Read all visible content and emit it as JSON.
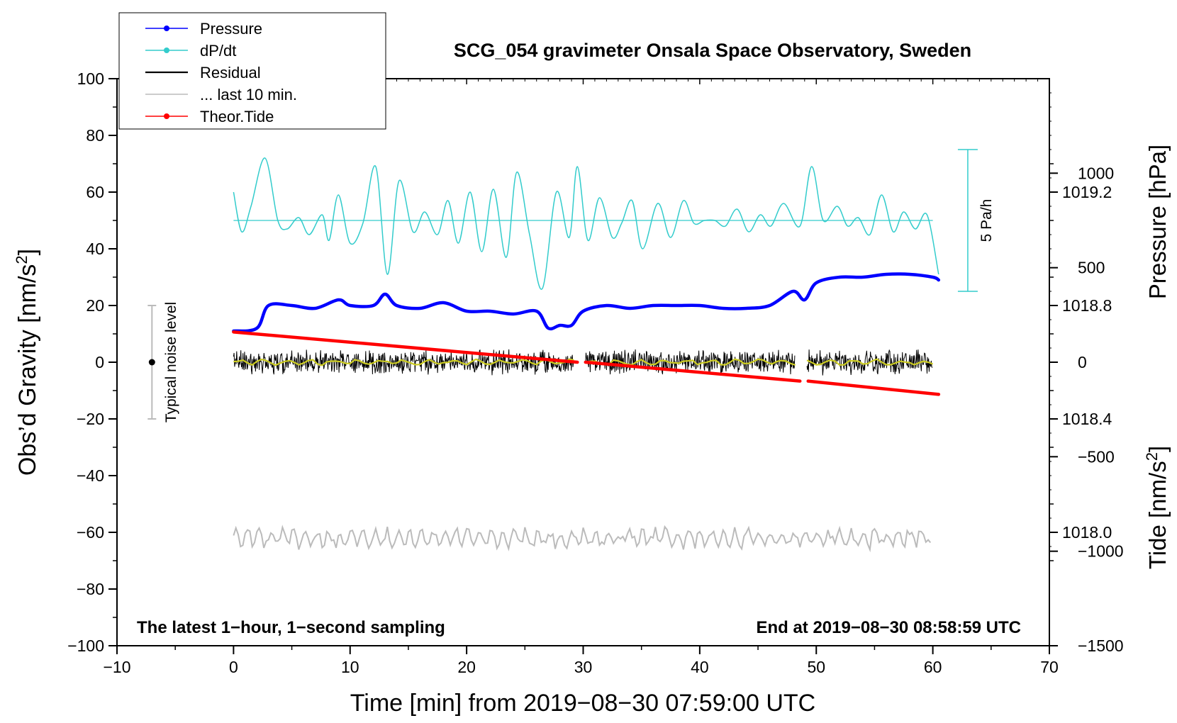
{
  "chart_data": {
    "type": "line",
    "title": "SCG_054 gravimeter Onsala Space Observatory, Sweden",
    "xlabel": "Time [min] from 2019−08−30 07:59:00 UTC",
    "ylabel_left": "Obs’d Gravity [nm/s",
    "ylabel_left_sup": "2",
    "ylabel_left_end": "]",
    "ylabel_right_pressure": "Pressure [hPa]",
    "ylabel_right_tide": "Tide [nm/s",
    "ylabel_right_tide_sup": "2",
    "ylabel_right_tide_end": "]",
    "xlim": [
      -10,
      70
    ],
    "ylim_left": [
      -100,
      100
    ],
    "pressure_lim": [
      1017.6,
      1019.6
    ],
    "tide_lim": [
      -1500,
      1500
    ],
    "x_ticks": [
      -10,
      0,
      10,
      20,
      30,
      40,
      50,
      60,
      70
    ],
    "x_tick_labels": [
      "−10",
      "0",
      "10",
      "20",
      "30",
      "40",
      "50",
      "60",
      "70"
    ],
    "y_left_ticks": [
      100,
      80,
      60,
      40,
      20,
      0,
      -20,
      -40,
      -60,
      -80,
      -100
    ],
    "y_left_tick_labels": [
      "100",
      "80",
      "60",
      "40",
      "20",
      "0",
      "−20",
      "−40",
      "−60",
      "−80",
      "−100"
    ],
    "pressure_ticks": [
      1019.2,
      1018.8,
      1018.4,
      1018.0
    ],
    "pressure_tick_labels": [
      "1019.2",
      "1018.8",
      "1018.4",
      "1018.0"
    ],
    "tide_ticks": [
      1000,
      500,
      0,
      -500,
      -1000,
      -1500
    ],
    "tide_tick_labels": [
      "1000",
      "500",
      "0",
      "−500",
      "−1000",
      "−1500"
    ],
    "legend": {
      "position": "top-left",
      "entries": [
        {
          "label": "Pressure",
          "color": "#0000ff",
          "marker": true
        },
        {
          "label": "dP/dt",
          "color": "#33cccc",
          "marker": true
        },
        {
          "label": "Residual",
          "color": "#000000",
          "marker": false
        },
        {
          "label": "... last 10 min.",
          "color": "#bbbbbb",
          "marker": false
        },
        {
          "label": "Theor.Tide",
          "color": "#ff0000",
          "marker": true
        }
      ]
    },
    "annotations": {
      "bottom_left": "The latest 1−hour, 1−second sampling",
      "bottom_right": "End at 2019−08−30 08:58:59 UTC",
      "noise_label": "Typical noise level",
      "noise_bar": {
        "x": -7,
        "center": 0,
        "low": -20,
        "high": 20
      },
      "dpdt_scale_label": "5 Pa/h",
      "dpdt_scale_bar_gravity": {
        "x": 63,
        "low": 25,
        "high": 75
      }
    },
    "series": [
      {
        "name": "Pressure",
        "axis": "pressure",
        "color": "#0000ff",
        "x": [
          0,
          2,
          3,
          5,
          7,
          9,
          10,
          12,
          13,
          14,
          16,
          18,
          20,
          22,
          24,
          26,
          27,
          28,
          29,
          30,
          32,
          34,
          36,
          38,
          40,
          42,
          44,
          46,
          48,
          49,
          50,
          52,
          54,
          56,
          58,
          60,
          60.5
        ],
        "values": [
          1018.71,
          1018.72,
          1018.8,
          1018.8,
          1018.79,
          1018.82,
          1018.8,
          1018.8,
          1018.84,
          1018.8,
          1018.79,
          1018.81,
          1018.78,
          1018.78,
          1018.77,
          1018.78,
          1018.72,
          1018.73,
          1018.73,
          1018.78,
          1018.8,
          1018.79,
          1018.8,
          1018.8,
          1018.8,
          1018.79,
          1018.79,
          1018.8,
          1018.85,
          1018.82,
          1018.88,
          1018.9,
          1018.9,
          1018.91,
          1018.91,
          1018.9,
          1018.89
        ]
      },
      {
        "name": "dP/dt",
        "axis": "gravity",
        "color": "#33cccc",
        "baseline": 50,
        "x": [
          0,
          0.7,
          1.5,
          2.7,
          3.8,
          4.6,
          5.6,
          6.5,
          7.6,
          8.2,
          9.0,
          10.0,
          11.1,
          12.2,
          13.2,
          14.2,
          15.4,
          16.4,
          17.5,
          18.4,
          19.3,
          20.3,
          21.3,
          22.3,
          23.4,
          24.3,
          25.4,
          26.5,
          27.7,
          28.8,
          29.5,
          30.4,
          31.4,
          32.5,
          33.3,
          34.2,
          35.1,
          36.4,
          37.5,
          38.6,
          39.5,
          40.4,
          41.3,
          42.2,
          43.2,
          44.2,
          45.2,
          46.1,
          47.2,
          48.6,
          49.6,
          50.6,
          51.8,
          52.7,
          53.6,
          54.6,
          55.6,
          56.6,
          57.5,
          58.5,
          59.5,
          60.5
        ],
        "values": [
          60,
          46,
          55,
          72,
          50,
          47,
          51,
          45,
          52,
          43,
          59,
          42,
          49,
          69,
          31,
          64,
          46,
          53,
          45,
          57,
          42,
          60,
          39,
          61,
          37,
          67,
          45,
          26,
          60,
          44,
          69,
          43,
          58,
          44,
          49,
          57,
          40,
          56,
          44,
          57,
          49,
          50,
          50,
          48,
          54,
          46,
          52,
          48,
          56,
          48,
          69,
          50,
          55,
          48,
          51,
          45,
          59,
          46,
          53,
          47,
          52,
          31
        ]
      },
      {
        "name": "Residual",
        "axis": "gravity",
        "color": "#000000",
        "segments_minutes": [
          [
            0,
            29.2
          ],
          [
            30.2,
            48.2
          ],
          [
            49.2,
            60
          ]
        ],
        "range": [
          -6,
          6
        ],
        "mean": 0
      },
      {
        "name": "... last 10 min.",
        "axis": "gravity",
        "color": "#bbbbbb",
        "x_range": [
          0,
          60
        ],
        "center": -62,
        "range": [
          -65,
          -55
        ]
      },
      {
        "name": "Theor.Tide",
        "axis": "tide",
        "color": "#ff0000",
        "x": [
          0,
          29.5,
          30.2,
          48.6,
          49.3,
          60.5
        ],
        "values": [
          160,
          0,
          0,
          -100,
          -100,
          -170
        ]
      }
    ]
  }
}
